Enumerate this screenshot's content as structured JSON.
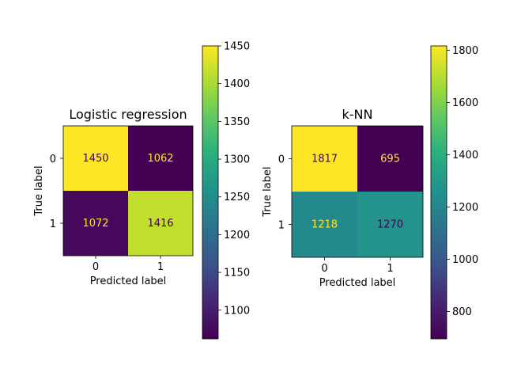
{
  "chart_data": [
    {
      "type": "heatmap",
      "title": "Logistic regression",
      "xlabel": "Predicted label",
      "ylabel": "True label",
      "x_categories": [
        "0",
        "1"
      ],
      "y_categories": [
        "0",
        "1"
      ],
      "values": [
        [
          1450,
          1062
        ],
        [
          1072,
          1416
        ]
      ],
      "colormap": "viridis",
      "colorbar": {
        "min": 1062,
        "max": 1450,
        "ticks": [
          1100,
          1150,
          1200,
          1250,
          1300,
          1350,
          1400,
          1450
        ]
      }
    },
    {
      "type": "heatmap",
      "title": "k-NN",
      "xlabel": "Predicted label",
      "ylabel": "True label",
      "x_categories": [
        "0",
        "1"
      ],
      "y_categories": [
        "0",
        "1"
      ],
      "values": [
        [
          1817,
          695
        ],
        [
          1218,
          1270
        ]
      ],
      "colormap": "viridis",
      "colorbar": {
        "min": 695,
        "max": 1817,
        "ticks": [
          800,
          1000,
          1200,
          1400,
          1600,
          1800
        ]
      }
    }
  ],
  "colors": {
    "text_on_dark": "#fde725",
    "text_on_light": "#440154",
    "axis": "#000000"
  }
}
